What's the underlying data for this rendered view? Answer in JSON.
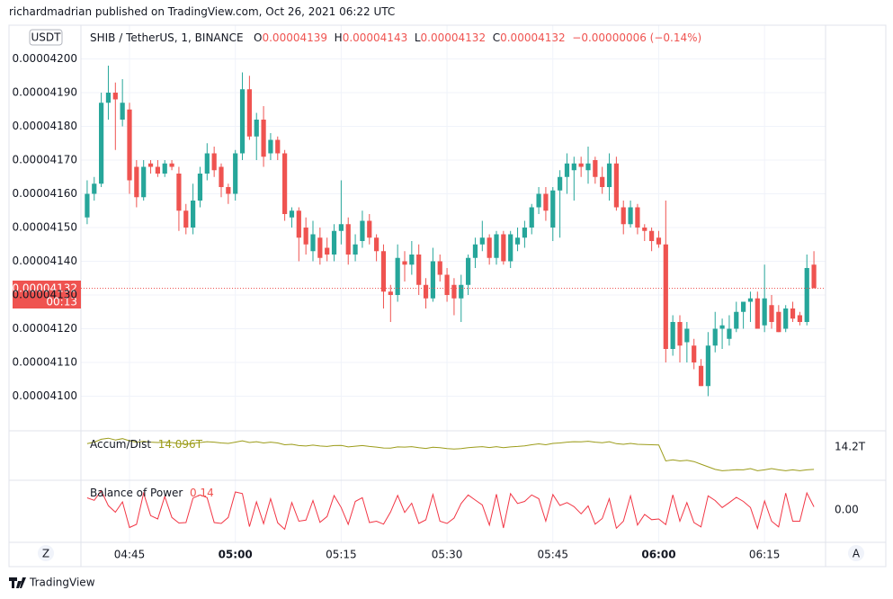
{
  "header": "richardmadrian published on TradingView.com, Oct 26, 2021 06:22 UTC",
  "chart_data": {
    "type": "candlestick",
    "currency": "USDT",
    "legend": {
      "symbol": "SHIB / TetherUS, 1, BINANCE",
      "open_label": "O",
      "high_label": "H",
      "low_label": "L",
      "close_label": "C",
      "change": "−0.00000006 (−0.14%)"
    },
    "categories": [
      null,
      null,
      null,
      null,
      null,
      null,
      "04:45",
      null,
      null,
      null,
      null,
      null,
      null,
      null,
      null,
      null,
      null,
      null,
      null,
      null,
      null,
      "05:00",
      null,
      null,
      null,
      null,
      null,
      null,
      null,
      null,
      null,
      null,
      null,
      null,
      null,
      null,
      "05:15",
      null,
      null,
      null,
      null,
      null,
      null,
      null,
      null,
      null,
      null,
      null,
      null,
      null,
      null,
      "05:30",
      null,
      null,
      null,
      null,
      null,
      null,
      null,
      null,
      null,
      null,
      null,
      null,
      null,
      null,
      "05:45",
      null,
      null,
      null,
      null,
      null,
      null,
      null,
      null,
      null,
      null,
      null,
      null,
      null,
      null,
      "06:00",
      null,
      null,
      null,
      null,
      null,
      null,
      null,
      null,
      null,
      null,
      null,
      null,
      null,
      null,
      "06:15",
      null,
      null,
      null,
      null,
      null,
      null,
      null
    ],
    "open": [
      4.153e-05,
      4.16e-05,
      4.163e-05,
      4.187e-05,
      4.19e-05,
      4.182e-05,
      4.185e-05,
      4.168e-05,
      4.159e-05,
      4.169e-05,
      4.168e-05,
      4.166e-05,
      4.169e-05,
      4.166e-05,
      4.155e-05,
      4.15e-05,
      4.158e-05,
      4.166e-05,
      4.172e-05,
      4.168e-05,
      4.162e-05,
      4.16e-05,
      4.172e-05,
      4.191e-05,
      4.177e-05,
      4.182e-05,
      4.172e-05,
      4.176e-05,
      4.172e-05,
      4.153e-05,
      4.155e-05,
      4.15e-05,
      4.143e-05,
      4.147e-05,
      4.144e-05,
      4.142e-05,
      4.149e-05,
      4.151e-05,
      4.142e-05,
      4.146e-05,
      4.152e-05,
      4.147e-05,
      4.143e-05,
      4.131e-05,
      4.13e-05,
      4.14e-05,
      4.139e-05,
      4.142e-05,
      4.133e-05,
      4.129e-05,
      4.14e-05,
      4.136e-05,
      4.133e-05,
      4.129e-05,
      4.133e-05,
      4.141e-05,
      4.145e-05,
      4.147e-05,
      4.141e-05,
      4.148e-05,
      4.14e-05,
      4.145e-05,
      4.147e-05,
      4.15e-05,
      4.156e-05,
      4.16e-05,
      4.15e-05,
      4.161e-05,
      4.165e-05,
      4.167e-05,
      4.169e-05,
      4.167e-05,
      4.17e-05,
      4.165e-05,
      4.162e-05,
      4.169e-05,
      4.156e-05,
      4.151e-05,
      4.156e-05,
      4.15e-05,
      4.149e-05,
      4.147e-05,
      4.145e-05,
      4.114e-05,
      4.122e-05,
      4.116e-05,
      4.115e-05,
      4.109e-05,
      4.103e-05,
      4.115e-05,
      4.12e-05,
      4.117e-05,
      4.12e-05,
      4.125e-05,
      4.128e-05,
      4.129e-05,
      4.121e-05,
      4.127e-05,
      4.125e-05,
      4.12e-05,
      4.126e-05,
      4.124e-05,
      4.122e-05,
      4.139e-05
    ],
    "high": [
      4.164e-05,
      4.165e-05,
      4.19e-05,
      4.198e-05,
      4.193e-05,
      4.194e-05,
      4.187e-05,
      4.17e-05,
      4.17e-05,
      4.17e-05,
      4.17e-05,
      4.17e-05,
      4.17e-05,
      4.168e-05,
      4.157e-05,
      4.163e-05,
      4.168e-05,
      4.175e-05,
      4.174e-05,
      4.169e-05,
      4.163e-05,
      4.173e-05,
      4.196e-05,
      4.195e-05,
      4.184e-05,
      4.186e-05,
      4.178e-05,
      4.177e-05,
      4.173e-05,
      4.156e-05,
      4.156e-05,
      4.153e-05,
      4.152e-05,
      4.15e-05,
      4.147e-05,
      4.151e-05,
      4.164e-05,
      4.153e-05,
      4.148e-05,
      4.155e-05,
      4.154e-05,
      4.148e-05,
      4.145e-05,
      4.133e-05,
      4.145e-05,
      4.143e-05,
      4.146e-05,
      4.145e-05,
      4.135e-05,
      4.144e-05,
      4.142e-05,
      4.138e-05,
      4.135e-05,
      4.136e-05,
      4.142e-05,
      4.147e-05,
      4.152e-05,
      4.148e-05,
      4.149e-05,
      4.149e-05,
      4.149e-05,
      4.15e-05,
      4.152e-05,
      4.157e-05,
      4.162e-05,
      4.162e-05,
      4.162e-05,
      4.167e-05,
      4.172e-05,
      4.171e-05,
      4.171e-05,
      4.174e-05,
      4.171e-05,
      4.168e-05,
      4.172e-05,
      4.171e-05,
      4.158e-05,
      4.158e-05,
      4.157e-05,
      4.151e-05,
      4.15e-05,
      4.149e-05,
      4.158e-05,
      4.124e-05,
      4.124e-05,
      4.122e-05,
      4.117e-05,
      4.111e-05,
      4.119e-05,
      4.125e-05,
      4.123e-05,
      4.124e-05,
      4.128e-05,
      4.128e-05,
      4.131e-05,
      4.131e-05,
      4.139e-05,
      4.13e-05,
      4.127e-05,
      4.127e-05,
      4.128e-05,
      4.125e-05,
      4.142e-05,
      4.143e-05
    ],
    "low": [
      4.151e-05,
      4.158e-05,
      4.162e-05,
      4.182e-05,
      4.173e-05,
      4.18e-05,
      4.16e-05,
      4.156e-05,
      4.158e-05,
      4.166e-05,
      4.165e-05,
      4.165e-05,
      4.167e-05,
      4.149e-05,
      4.148e-05,
      4.148e-05,
      4.156e-05,
      4.164e-05,
      4.165e-05,
      4.159e-05,
      4.157e-05,
      4.158e-05,
      4.17e-05,
      4.176e-05,
      4.17e-05,
      4.168e-05,
      4.17e-05,
      4.17e-05,
      4.152e-05,
      4.15e-05,
      4.14e-05,
      4.142e-05,
      4.14e-05,
      4.139e-05,
      4.14e-05,
      4.14e-05,
      4.145e-05,
      4.139e-05,
      4.14e-05,
      4.144e-05,
      4.145e-05,
      4.14e-05,
      4.126e-05,
      4.122e-05,
      4.128e-05,
      4.134e-05,
      4.136e-05,
      4.13e-05,
      4.126e-05,
      4.128e-05,
      4.134e-05,
      4.128e-05,
      4.124e-05,
      4.122e-05,
      4.13e-05,
      4.138e-05,
      4.143e-05,
      4.139e-05,
      4.139e-05,
      4.139e-05,
      4.138e-05,
      4.143e-05,
      4.144e-05,
      4.148e-05,
      4.154e-05,
      4.152e-05,
      4.146e-05,
      4.147e-05,
      4.16e-05,
      4.158e-05,
      4.165e-05,
      4.163e-05,
      4.163e-05,
      4.16e-05,
      4.158e-05,
      4.155e-05,
      4.148e-05,
      4.15e-05,
      4.148e-05,
      4.146e-05,
      4.143e-05,
      4.144e-05,
      4.11e-05,
      4.112e-05,
      4.11e-05,
      4.11e-05,
      4.108e-05,
      4.103e-05,
      4.1e-05,
      4.113e-05,
      4.114e-05,
      4.115e-05,
      4.119e-05,
      4.12e-05,
      4.122e-05,
      4.12e-05,
      4.119e-05,
      4.12e-05,
      4.119e-05,
      4.119e-05,
      4.122e-05,
      4.121e-05,
      4.121e-05,
      4.132e-05
    ],
    "close": [
      4.16e-05,
      4.163e-05,
      4.187e-05,
      4.19e-05,
      4.188e-05,
      4.187e-05,
      4.164e-05,
      4.159e-05,
      4.168e-05,
      4.168e-05,
      4.166e-05,
      4.169e-05,
      4.168e-05,
      4.155e-05,
      4.15e-05,
      4.158e-05,
      4.166e-05,
      4.172e-05,
      4.167e-05,
      4.162e-05,
      4.16e-05,
      4.172e-05,
      4.191e-05,
      4.177e-05,
      4.182e-05,
      4.171e-05,
      4.176e-05,
      4.172e-05,
      4.154e-05,
      4.155e-05,
      4.147e-05,
      4.145e-05,
      4.148e-05,
      4.141e-05,
      4.142e-05,
      4.149e-05,
      4.151e-05,
      4.142e-05,
      4.145e-05,
      4.152e-05,
      4.147e-05,
      4.143e-05,
      4.131e-05,
      4.13e-05,
      4.141e-05,
      4.139e-05,
      4.142e-05,
      4.133e-05,
      4.129e-05,
      4.14e-05,
      4.136e-05,
      4.13e-05,
      4.129e-05,
      4.133e-05,
      4.141e-05,
      4.145e-05,
      4.147e-05,
      4.141e-05,
      4.148e-05,
      4.14e-05,
      4.148e-05,
      4.147e-05,
      4.15e-05,
      4.156e-05,
      4.16e-05,
      4.155e-05,
      4.161e-05,
      4.165e-05,
      4.169e-05,
      4.169e-05,
      4.168e-05,
      4.169e-05,
      4.165e-05,
      4.162e-05,
      4.169e-05,
      4.156e-05,
      4.151e-05,
      4.156e-05,
      4.15e-05,
      4.149e-05,
      4.146e-05,
      4.145e-05,
      4.114e-05,
      4.122e-05,
      4.115e-05,
      4.12e-05,
      4.11e-05,
      4.103e-05,
      4.115e-05,
      4.12e-05,
      4.121e-05,
      4.12e-05,
      4.125e-05,
      4.128e-05,
      4.129e-05,
      4.12e-05,
      4.129e-05,
      4.122e-05,
      4.119e-05,
      4.126e-05,
      4.123e-05,
      4.122e-05,
      4.138e-05,
      4.132e-05
    ],
    "up_color": "#26a69a",
    "down_color": "#ef5350",
    "ylim": [
      4.09e-05,
      4.21e-05
    ],
    "yticks": [
      {
        "value": 4.2e-05,
        "label": "0.00004200"
      },
      {
        "value": 4.19e-05,
        "label": "0.00004190"
      },
      {
        "value": 4.18e-05,
        "label": "0.00004180"
      },
      {
        "value": 4.17e-05,
        "label": "0.00004170"
      },
      {
        "value": 4.16e-05,
        "label": "0.00004160"
      },
      {
        "value": 4.15e-05,
        "label": "0.00004150"
      },
      {
        "value": 4.14e-05,
        "label": "0.00004140"
      },
      {
        "value": 4.13e-05,
        "label": "0.00004130"
      },
      {
        "value": 4.12e-05,
        "label": "0.00004120"
      },
      {
        "value": 4.11e-05,
        "label": "0.00004110"
      },
      {
        "value": 4.1e-05,
        "label": "0.00004100"
      }
    ],
    "grid": true,
    "countdown": "00:13",
    "indicators": [
      {
        "name": "Accum/Dist",
        "type": "line",
        "legend_value": "14.096T",
        "color": "#9c9c1a",
        "ylim": [
          14.05,
          14.27
        ],
        "yticks": [
          {
            "value": 14.2,
            "label": "14.2T"
          }
        ],
        "values": [
          14.215,
          14.222,
          14.235,
          14.24,
          14.232,
          14.238,
          14.228,
          14.222,
          14.225,
          14.222,
          14.22,
          14.222,
          14.22,
          14.215,
          14.212,
          14.216,
          14.22,
          14.224,
          14.222,
          14.218,
          14.216,
          14.222,
          14.228,
          14.22,
          14.224,
          14.218,
          14.222,
          14.218,
          14.21,
          14.212,
          14.206,
          14.204,
          14.208,
          14.204,
          14.202,
          14.206,
          14.207,
          14.2,
          14.203,
          14.206,
          14.202,
          14.199,
          14.195,
          14.194,
          14.2,
          14.199,
          14.201,
          14.196,
          14.193,
          14.198,
          14.196,
          14.192,
          14.19,
          14.192,
          14.196,
          14.199,
          14.201,
          14.197,
          14.201,
          14.196,
          14.2,
          14.202,
          14.205,
          14.21,
          14.214,
          14.21,
          14.216,
          14.218,
          14.222,
          14.224,
          14.223,
          14.226,
          14.222,
          14.219,
          14.224,
          14.215,
          14.212,
          14.216,
          14.212,
          14.211,
          14.21,
          14.209,
          14.135,
          14.14,
          14.135,
          14.138,
          14.132,
          14.12,
          14.108,
          14.096,
          14.09,
          14.092,
          14.095,
          14.094,
          14.1,
          14.09,
          14.094,
          14.1,
          14.094,
          14.09,
          14.094,
          14.09,
          14.094,
          14.096
        ]
      },
      {
        "name": "Balance of Power",
        "type": "line",
        "legend_value": "0.14",
        "color": "#f23645",
        "ylim": [
          -1.44,
          1.28
        ],
        "yticks": [
          {
            "value": 0,
            "label": "0.00"
          }
        ],
        "values": [
          0.54,
          0.43,
          0.86,
          0.19,
          -0.1,
          0.36,
          -0.78,
          -0.64,
          0.75,
          -0.25,
          -0.4,
          0.6,
          -0.33,
          -0.58,
          -0.56,
          0.53,
          0.67,
          0.55,
          -0.56,
          -0.6,
          -0.33,
          0.8,
          0.73,
          -0.74,
          0.36,
          -0.61,
          0.5,
          -0.57,
          -0.86,
          0.33,
          -0.5,
          -0.45,
          0.42,
          -0.55,
          -0.29,
          0.64,
          0.11,
          -0.64,
          0.38,
          0.55,
          -0.56,
          -0.5,
          -0.63,
          -0.09,
          0.65,
          -0.11,
          0.3,
          -0.6,
          -0.44,
          0.69,
          -0.5,
          -0.6,
          -0.36,
          0.29,
          0.67,
          0.44,
          0.22,
          -0.67,
          0.7,
          -0.8,
          0.73,
          0.29,
          0.38,
          0.67,
          0.5,
          -0.5,
          0.69,
          0.2,
          0.33,
          0.15,
          -0.17,
          0.18,
          -0.63,
          -0.38,
          0.5,
          -0.81,
          -0.5,
          0.63,
          -0.67,
          -0.2,
          -0.43,
          -0.4,
          -0.65,
          0.67,
          -0.5,
          0.33,
          -0.56,
          -0.75,
          0.63,
          0.42,
          0.11,
          0.33,
          0.56,
          0.38,
          0.11,
          -0.82,
          0.4,
          -0.5,
          -0.75,
          0.75,
          -0.5,
          -0.5,
          0.76,
          0.14
        ]
      }
    ]
  },
  "controls": {
    "scale_left": "Z",
    "scale_right": "A"
  },
  "footer": "TradingView"
}
